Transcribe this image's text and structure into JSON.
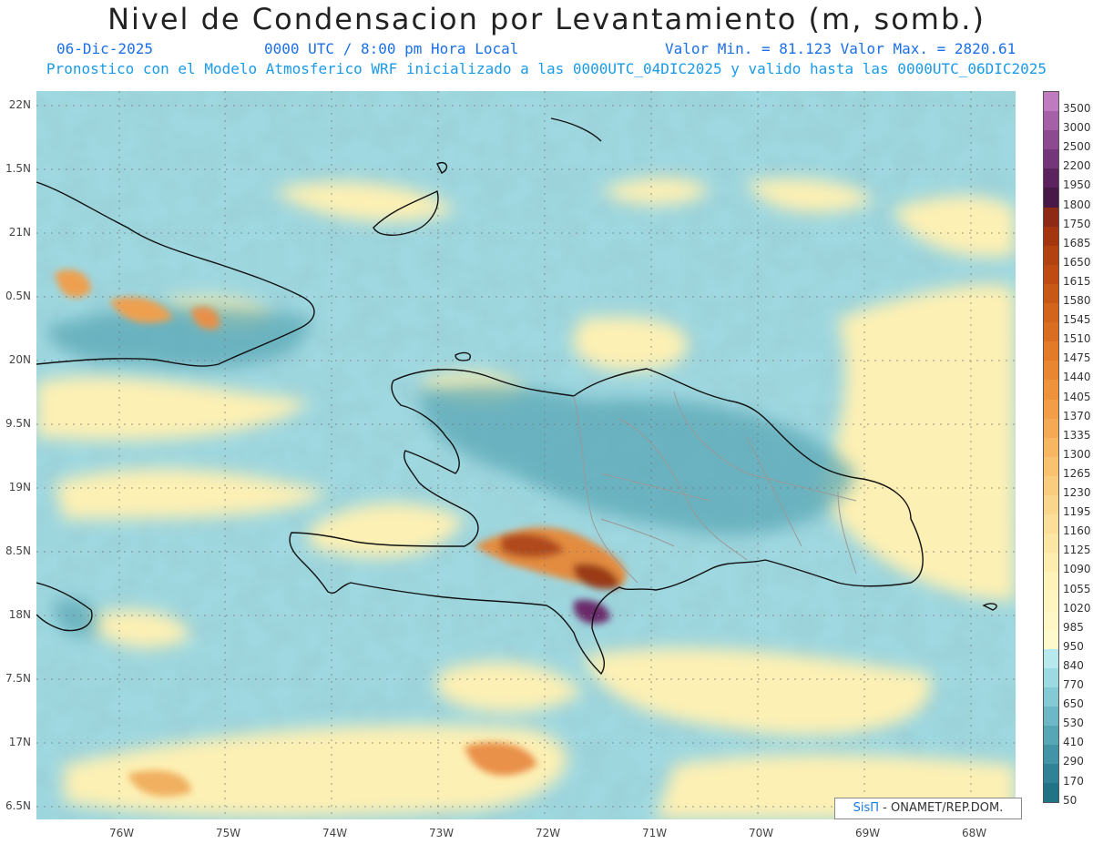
{
  "title": "Nivel de Condensacion por Levantamiento (m, somb.)",
  "date": "06-Dic-2025",
  "time": "0000 UTC / 8:00 pm Hora Local",
  "minmax": "Valor Min. = 81.123  Valor Max. = 2820.61",
  "subtitle": "Pronostico con el Modelo Atmosferico WRF inicializado a las 0000UTC_04DIC2025 y valido hasta las  0000UTC_06DIC2025",
  "credit": {
    "sis": "SisΠ",
    "org": " - ONAMET/REP.DOM."
  },
  "lat_labels": [
    "22N",
    "1.5N",
    "21N",
    "0.5N",
    "20N",
    "9.5N",
    "19N",
    "8.5N",
    "18N",
    "7.5N",
    "17N",
    "6.5N"
  ],
  "lon_labels": [
    "76W",
    "75W",
    "74W",
    "73W",
    "72W",
    "71W",
    "70W",
    "69W",
    "68W"
  ],
  "colorbar": {
    "levels": [
      "3500",
      "3000",
      "2500",
      "2200",
      "1950",
      "1800",
      "1750",
      "1685",
      "1650",
      "1615",
      "1580",
      "1545",
      "1510",
      "1475",
      "1440",
      "1405",
      "1370",
      "1335",
      "1300",
      "1265",
      "1230",
      "1195",
      "1160",
      "1125",
      "1090",
      "1055",
      "1020",
      "985",
      "950",
      "840",
      "770",
      "650",
      "530",
      "410",
      "290",
      "170",
      "50"
    ],
    "colors": [
      "#c07ac0",
      "#a660a8",
      "#8e4a90",
      "#74357a",
      "#5c2260",
      "#481848",
      "#8c2a14",
      "#a3360f",
      "#b2420f",
      "#be4c12",
      "#c85816",
      "#d2641c",
      "#da6e20",
      "#e27a28",
      "#e88632",
      "#ee923c",
      "#f29e48",
      "#f4aa54",
      "#f6b662",
      "#f8c270",
      "#f9cc7e",
      "#fad68c",
      "#fbdf98",
      "#fce6a4",
      "#fdeeb0",
      "#fef3b8",
      "#fff6bf",
      "#fff8c6",
      "#fffacc",
      "#b6e8ee",
      "#9cdae2",
      "#84cad4",
      "#6cb8c6",
      "#56a6b6",
      "#4294a6",
      "#308396",
      "#217486"
    ]
  }
}
